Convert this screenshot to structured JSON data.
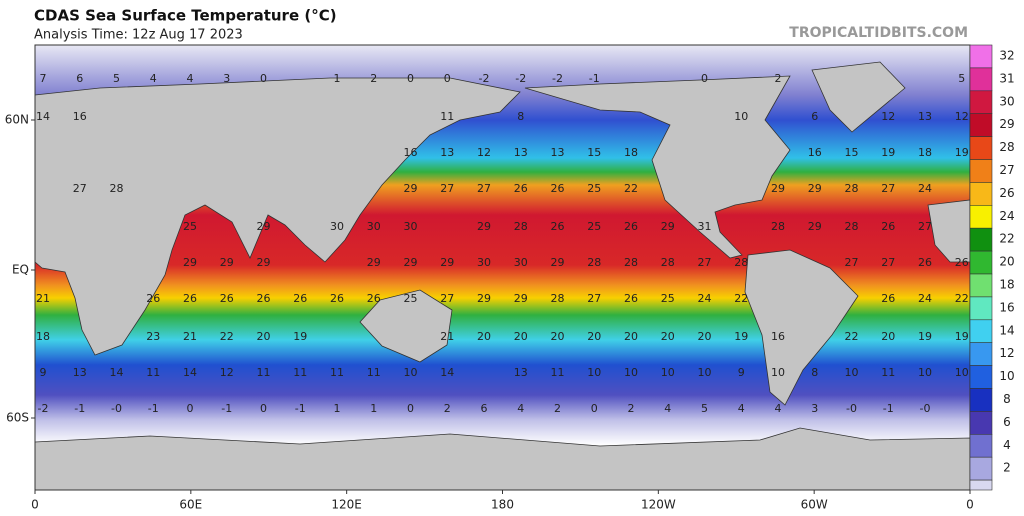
{
  "header": {
    "title": "CDAS Sea Surface Temperature (°C)",
    "subtitle": "Analysis Time: 12z Aug 17 2023",
    "watermark": "TROPICALTIDBITS.COM"
  },
  "map": {
    "lat_labels": [
      "60N",
      "EQ",
      "60S"
    ],
    "lon_labels": [
      "0",
      "60E",
      "120E",
      "180",
      "120W",
      "60W",
      "0"
    ],
    "rows": [
      [
        "7",
        "6",
        "5",
        "4",
        "4",
        "3",
        "0",
        "1",
        "2",
        "0",
        "0",
        "-2",
        "-2",
        "-2",
        "-1",
        "0",
        "2",
        "5"
      ],
      [
        "14",
        "16",
        "11",
        "8",
        "10",
        "6",
        "12",
        "13",
        "12"
      ],
      [
        "16",
        "13",
        "12",
        "13",
        "13",
        "15",
        "18",
        "16",
        "15",
        "19",
        "18",
        "19"
      ],
      [
        "27",
        "28",
        "29",
        "27",
        "27",
        "26",
        "26",
        "25",
        "22",
        "29",
        "29",
        "28",
        "27",
        "24"
      ],
      [
        "25",
        "29",
        "30",
        "30",
        "30",
        "29",
        "28",
        "26",
        "25",
        "26",
        "29",
        "31",
        "28",
        "29",
        "28",
        "26",
        "27"
      ],
      [
        "29",
        "29",
        "29",
        "29",
        "29",
        "29",
        "30",
        "30",
        "29",
        "28",
        "28",
        "28",
        "27",
        "28",
        "27",
        "27",
        "26",
        "26"
      ],
      [
        "21",
        "26",
        "26",
        "26",
        "26",
        "26",
        "26",
        "26",
        "25",
        "27",
        "29",
        "29",
        "28",
        "27",
        "26",
        "25",
        "24",
        "22",
        "26",
        "24",
        "22"
      ],
      [
        "18",
        "23",
        "21",
        "22",
        "20",
        "19",
        "21",
        "20",
        "20",
        "20",
        "20",
        "20",
        "20",
        "20",
        "19",
        "16",
        "22",
        "20",
        "19",
        "19"
      ],
      [
        "9",
        "13",
        "14",
        "11",
        "14",
        "12",
        "11",
        "11",
        "11",
        "11",
        "10",
        "14",
        "13",
        "11",
        "10",
        "10",
        "10",
        "10",
        "9",
        "10",
        "8",
        "10",
        "11",
        "10",
        "10"
      ],
      [
        "-2",
        "-1",
        "-0",
        "-1",
        "0",
        "-1",
        "0",
        "-1",
        "1",
        "1",
        "0",
        "2",
        "6",
        "4",
        "2",
        "0",
        "2",
        "4",
        "5",
        "4",
        "4",
        "3",
        "-0",
        "-1",
        "-0"
      ]
    ]
  },
  "colorbar": {
    "labels": [
      "32",
      "31",
      "30",
      "29",
      "28",
      "27",
      "26",
      "24",
      "22",
      "20",
      "18",
      "16",
      "14",
      "12",
      "10",
      "8",
      "6",
      "4",
      "2"
    ],
    "colors": [
      "#f070e8",
      "#e0309a",
      "#d01840",
      "#c00c28",
      "#e84818",
      "#f08018",
      "#f8b818",
      "#f8f000",
      "#109010",
      "#30b830",
      "#70e070",
      "#60e8c0",
      "#40d0f0",
      "#3898f0",
      "#2060e0",
      "#1830c0",
      "#4838b0",
      "#7070d0",
      "#a8a8e0",
      "#d8d8f0",
      "#ffffff"
    ]
  }
}
